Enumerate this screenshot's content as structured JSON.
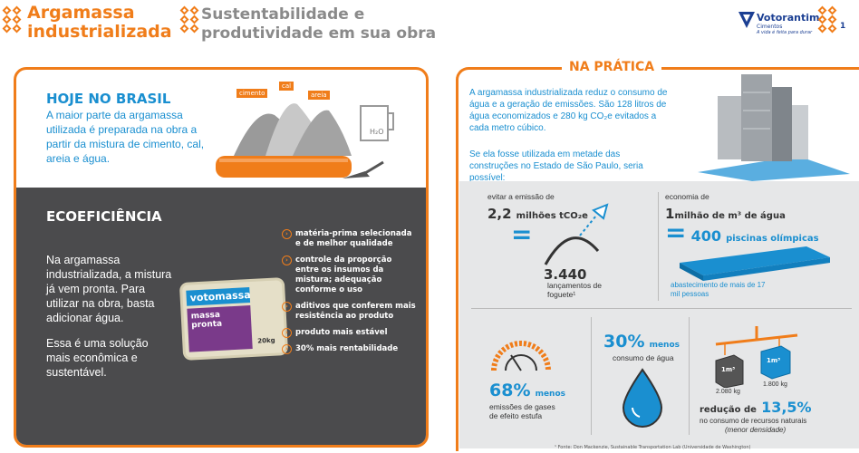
{
  "header": {
    "title_line1": "Argamassa",
    "title_line2": "industrializada",
    "subtitle_line1": "Sustentabilidade e",
    "subtitle_line2": "produtividade em sua obra",
    "brand": "Votorantim",
    "brand_sub": "Cimentos",
    "brand_tag": "A vida é feita para durar",
    "page": "1"
  },
  "left": {
    "heading": "HOJE NO BRASIL",
    "paragraph": "A maior parte da argamassa utilizada é preparada na obra a partir da mistura de cimento, cal, areia e água.",
    "tags": {
      "cimento": "cimento",
      "cal": "cal",
      "areia": "areia"
    },
    "beaker_label": "H₂O",
    "eco_heading": "ECOEFICIÊNCIA",
    "eco_p1": "Na argamassa industrializada, a mistura já vem pronta. Para utilizar na obra, basta adicionar água.",
    "eco_p2": "Essa é uma solução mais econômica e sustentável.",
    "bag": {
      "brand": "votomassa",
      "line1": "massa",
      "line2": "pronta",
      "weight": "20kg"
    },
    "bullets": [
      "matéria-prima selecionada e de melhor qualidade",
      "controle da proporção entre os insumos da mistura; adequação conforme o uso",
      "aditivos que conferem mais resistência ao produto",
      "produto mais estável",
      "30% mais rentabilidade"
    ],
    "chev": "›"
  },
  "right": {
    "title": "NA PRÁTICA",
    "p1": "A argamassa industrializada reduz o consumo de água e a geração de emissões. São 128 litros de água economizados e 280 kg CO₂e evitados a cada metro cúbico.",
    "p2": "Se ela fosse utilizada em metade das construções no Estado de São Paulo, seria possível:",
    "emis_label": "evitar a emissão de",
    "emis_value": "2,2",
    "emis_unit": "milhões tCO₂e",
    "eq": "=",
    "rocket_value": "3.440",
    "rocket_label": "lançamentos de foguete¹",
    "water_label": "economia de",
    "water_value": "1",
    "water_unit": "milhão de m³ de água",
    "pools_value": "400",
    "pools_unit": "piscinas olímpicas",
    "pools_sub": "abastecimento de mais de 17 mil pessoas",
    "emis_pct": "68%",
    "emis_pct_word": "menos",
    "emis_pct_sub": "emissões de gases de efeito estufa",
    "water_pct": "30%",
    "water_pct_word": "menos",
    "water_pct_sub": "consumo de água",
    "cube1": "1m³",
    "cube2": "1m³",
    "kg1": "2.080 kg",
    "kg2": "1.800 kg",
    "red_label": "redução de",
    "red_value": "13,5%",
    "red_sub": "no consumo de recursos naturais",
    "red_sub2": "(menor densidade)",
    "footnote": "¹ Fonte: Don Mackenzie, Sustainable Transportation Lab (Universidade de Washington)"
  },
  "colors": {
    "orange": "#f07d1a",
    "blue": "#1a8fd0",
    "dark": "#4b4b4d",
    "navy": "#1b3f93"
  }
}
